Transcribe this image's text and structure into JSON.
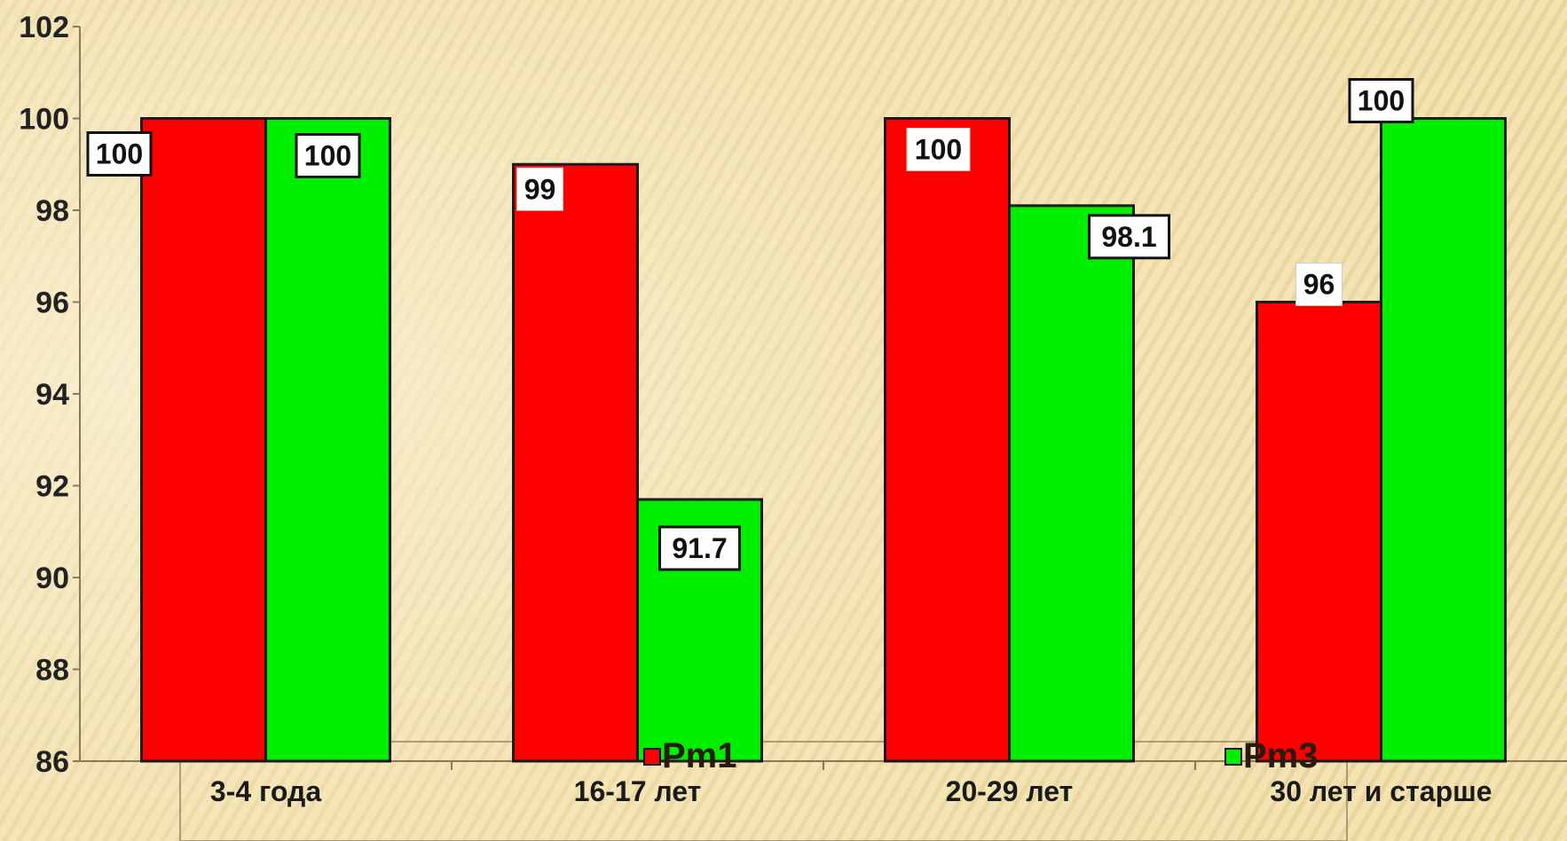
{
  "chart_data": {
    "type": "bar",
    "title": "",
    "xlabel": "",
    "ylabel": "",
    "categories": [
      "3-4 года",
      "16-17 лет",
      "20-29 лет",
      "30  лет и старше"
    ],
    "series": [
      {
        "name": "Рm1",
        "color": "#ff0000",
        "values": [
          100,
          99,
          100,
          96
        ]
      },
      {
        "name": "Рm3",
        "color": "#00ee00",
        "values": [
          100,
          91.7,
          98.1,
          100
        ]
      }
    ],
    "data_labels": [
      [
        "100",
        "99",
        "100",
        "96"
      ],
      [
        "100",
        "91.7",
        "98.1",
        "100"
      ]
    ],
    "ylim": [
      86,
      102
    ],
    "yticks": [
      86,
      88,
      90,
      92,
      94,
      96,
      98,
      100,
      102
    ],
    "grid": false,
    "legend": "bottom"
  },
  "colors": {
    "background": "#f3e3b3",
    "stripe": "#e6cf93",
    "axis": "#8a7a5a",
    "bar_outline": "#1a1a1a",
    "label_box": "#ffffff"
  }
}
